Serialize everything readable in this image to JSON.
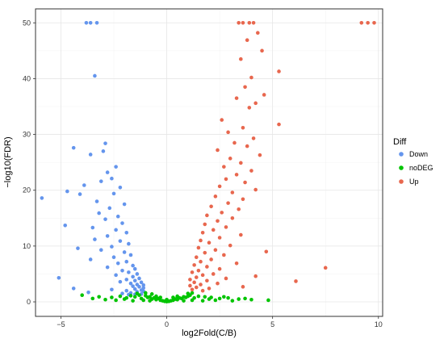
{
  "chart_data": {
    "type": "scatter",
    "xlabel": "log2Fold(C/B)",
    "ylabel": "−log10(FDR)",
    "xlim": [
      -6.2,
      10.2
    ],
    "ylim": [
      -2.6,
      52.5
    ],
    "xticks": [
      -5,
      0,
      5,
      10
    ],
    "yticks": [
      0,
      10,
      20,
      30,
      40,
      50
    ],
    "grid": true,
    "legend": {
      "title": "Diff",
      "position": "right"
    },
    "series": [
      {
        "name": "Down",
        "color": "#6495ED",
        "points": [
          [
            -3.8,
            50
          ],
          [
            -3.6,
            50
          ],
          [
            -3.3,
            50
          ],
          [
            -3.4,
            40.5
          ],
          [
            -4.4,
            27.6
          ],
          [
            -2.9,
            28.4
          ],
          [
            -3.0,
            27.0
          ],
          [
            -3.6,
            26.4
          ],
          [
            -2.4,
            24.2
          ],
          [
            -2.8,
            23.2
          ],
          [
            -2.6,
            22.1
          ],
          [
            -3.1,
            21.6
          ],
          [
            -3.9,
            20.9
          ],
          [
            -2.2,
            20.5
          ],
          [
            -2.5,
            19.4
          ],
          [
            -4.7,
            19.8
          ],
          [
            -4.1,
            19.3
          ],
          [
            -5.9,
            18.6
          ],
          [
            -3.3,
            18.0
          ],
          [
            -2.0,
            17.5
          ],
          [
            -2.7,
            16.8
          ],
          [
            -3.2,
            15.9
          ],
          [
            -2.3,
            15.3
          ],
          [
            -2.9,
            14.8
          ],
          [
            -2.1,
            14.1
          ],
          [
            -4.8,
            13.7
          ],
          [
            -3.5,
            13.3
          ],
          [
            -2.4,
            12.9
          ],
          [
            -1.9,
            12.4
          ],
          [
            -2.8,
            11.8
          ],
          [
            -3.4,
            11.2
          ],
          [
            -2.2,
            10.9
          ],
          [
            -1.8,
            10.4
          ],
          [
            -2.6,
            9.9
          ],
          [
            -4.2,
            9.6
          ],
          [
            -3.1,
            9.3
          ],
          [
            -2.0,
            8.9
          ],
          [
            -1.7,
            8.4
          ],
          [
            -2.5,
            8.0
          ],
          [
            -3.6,
            7.6
          ],
          [
            -1.9,
            7.2
          ],
          [
            -2.3,
            6.9
          ],
          [
            -1.6,
            6.5
          ],
          [
            -2.8,
            6.2
          ],
          [
            -1.5,
            5.9
          ],
          [
            -2.1,
            5.6
          ],
          [
            -1.8,
            5.3
          ],
          [
            -1.4,
            5.0
          ],
          [
            -2.4,
            4.8
          ],
          [
            -1.6,
            4.5
          ],
          [
            -5.1,
            4.3
          ],
          [
            -1.3,
            4.2
          ],
          [
            -1.9,
            4.0
          ],
          [
            -1.5,
            3.8
          ],
          [
            -2.2,
            3.6
          ],
          [
            -1.2,
            3.5
          ],
          [
            -1.7,
            3.3
          ],
          [
            -1.4,
            3.1
          ],
          [
            -1.1,
            3.0
          ],
          [
            -1.6,
            2.8
          ],
          [
            -1.3,
            2.7
          ],
          [
            -1.1,
            2.5
          ],
          [
            -4.4,
            2.4
          ],
          [
            -1.5,
            2.3
          ],
          [
            -1.2,
            2.1
          ],
          [
            -2.6,
            2.2
          ],
          [
            -1.9,
            2.0
          ],
          [
            -1.1,
            1.9
          ],
          [
            -1.4,
            1.8
          ],
          [
            -1.7,
            1.6
          ],
          [
            -3.7,
            1.7
          ],
          [
            -2.1,
            1.5
          ],
          [
            -1.2,
            1.4
          ],
          [
            -1.5,
            1.35
          ],
          [
            -1.8,
            1.3
          ]
        ]
      },
      {
        "name": "noDEG",
        "color": "#00C400",
        "points": [
          [
            -4.0,
            1.2
          ],
          [
            -3.2,
            0.9
          ],
          [
            -2.6,
            0.8
          ],
          [
            -2.2,
            1.0
          ],
          [
            -1.9,
            0.7
          ],
          [
            -1.7,
            1.1
          ],
          [
            -1.5,
            0.9
          ],
          [
            -1.3,
            1.2
          ],
          [
            -1.2,
            0.6
          ],
          [
            -1.0,
            1.1
          ],
          [
            -0.9,
            0.8
          ],
          [
            -0.8,
            0.9
          ],
          [
            -0.7,
            0.5
          ],
          [
            -0.6,
            0.7
          ],
          [
            -0.5,
            0.4
          ],
          [
            -0.4,
            0.6
          ],
          [
            -0.3,
            0.3
          ],
          [
            -0.2,
            0.2
          ],
          [
            -0.1,
            0.1
          ],
          [
            0.0,
            0.05
          ],
          [
            0.1,
            0.1
          ],
          [
            0.2,
            0.2
          ],
          [
            0.3,
            0.3
          ],
          [
            0.4,
            0.5
          ],
          [
            0.5,
            0.4
          ],
          [
            0.6,
            0.7
          ],
          [
            0.7,
            0.6
          ],
          [
            0.8,
            0.9
          ],
          [
            0.9,
            0.8
          ],
          [
            1.0,
            1.0
          ],
          [
            1.1,
            1.2
          ],
          [
            1.3,
            0.7
          ],
          [
            1.5,
            1.0
          ],
          [
            1.8,
            0.9
          ],
          [
            2.1,
            0.8
          ],
          [
            2.5,
            0.6
          ],
          [
            2.9,
            0.7
          ],
          [
            3.4,
            0.5
          ],
          [
            4.0,
            0.4
          ],
          [
            4.8,
            0.3
          ],
          [
            -2.9,
            0.4
          ],
          [
            -2.4,
            0.3
          ],
          [
            -1.6,
            0.2
          ],
          [
            -1.1,
            0.3
          ],
          [
            -0.8,
            0.2
          ],
          [
            0.8,
            0.2
          ],
          [
            1.2,
            0.3
          ],
          [
            1.7,
            0.2
          ],
          [
            2.3,
            0.3
          ],
          [
            3.1,
            0.2
          ],
          [
            -1.4,
            1.5
          ],
          [
            -1.0,
            1.6
          ],
          [
            -0.7,
            1.4
          ],
          [
            1.0,
            1.5
          ],
          [
            1.2,
            1.6
          ],
          [
            -0.5,
            1.0
          ],
          [
            0.5,
            1.0
          ],
          [
            -0.3,
            0.8
          ],
          [
            0.3,
            0.8
          ],
          [
            0.0,
            0.4
          ],
          [
            -3.5,
            0.6
          ],
          [
            -2.0,
            0.5
          ],
          [
            2.0,
            0.5
          ],
          [
            2.7,
            0.9
          ],
          [
            3.7,
            0.6
          ]
        ]
      },
      {
        "name": "Up",
        "color": "#E8674E",
        "points": [
          [
            3.4,
            50
          ],
          [
            3.6,
            50
          ],
          [
            3.9,
            50
          ],
          [
            4.1,
            50
          ],
          [
            9.2,
            50
          ],
          [
            9.5,
            50
          ],
          [
            9.8,
            50
          ],
          [
            4.3,
            48.2
          ],
          [
            3.8,
            46.9
          ],
          [
            4.5,
            45.0
          ],
          [
            3.5,
            43.5
          ],
          [
            5.3,
            41.3
          ],
          [
            4.0,
            40.2
          ],
          [
            3.7,
            38.5
          ],
          [
            4.6,
            37.1
          ],
          [
            3.3,
            36.5
          ],
          [
            4.2,
            35.6
          ],
          [
            3.9,
            34.8
          ],
          [
            2.6,
            32.6
          ],
          [
            5.3,
            31.8
          ],
          [
            3.6,
            31.2
          ],
          [
            2.9,
            30.4
          ],
          [
            4.1,
            29.3
          ],
          [
            3.2,
            28.5
          ],
          [
            3.8,
            27.9
          ],
          [
            2.4,
            27.2
          ],
          [
            4.4,
            26.3
          ],
          [
            3.0,
            25.7
          ],
          [
            3.5,
            24.9
          ],
          [
            2.7,
            24.2
          ],
          [
            4.0,
            23.5
          ],
          [
            3.3,
            22.8
          ],
          [
            2.8,
            22.0
          ],
          [
            3.7,
            21.4
          ],
          [
            2.5,
            20.7
          ],
          [
            4.2,
            20.1
          ],
          [
            3.1,
            19.6
          ],
          [
            2.3,
            18.9
          ],
          [
            3.6,
            18.4
          ],
          [
            2.9,
            17.7
          ],
          [
            2.1,
            17.1
          ],
          [
            3.4,
            16.6
          ],
          [
            2.6,
            16.0
          ],
          [
            1.9,
            15.5
          ],
          [
            3.1,
            15.0
          ],
          [
            2.4,
            14.5
          ],
          [
            1.8,
            13.9
          ],
          [
            2.8,
            13.4
          ],
          [
            2.2,
            12.9
          ],
          [
            1.7,
            12.4
          ],
          [
            3.5,
            12.0
          ],
          [
            2.5,
            11.5
          ],
          [
            1.6,
            11.0
          ],
          [
            2.0,
            10.6
          ],
          [
            3.0,
            10.1
          ],
          [
            1.5,
            9.7
          ],
          [
            2.3,
            9.3
          ],
          [
            4.7,
            9.0
          ],
          [
            1.8,
            8.8
          ],
          [
            2.7,
            8.4
          ],
          [
            1.4,
            8.0
          ],
          [
            2.1,
            7.6
          ],
          [
            1.6,
            7.2
          ],
          [
            3.3,
            6.9
          ],
          [
            1.3,
            6.6
          ],
          [
            7.5,
            6.1
          ],
          [
            1.9,
            6.3
          ],
          [
            2.5,
            5.9
          ],
          [
            1.5,
            5.6
          ],
          [
            1.2,
            5.3
          ],
          [
            2.2,
            5.0
          ],
          [
            1.7,
            4.8
          ],
          [
            4.2,
            4.6
          ],
          [
            1.4,
            4.4
          ],
          [
            2.8,
            4.2
          ],
          [
            1.1,
            4.0
          ],
          [
            6.1,
            3.7
          ],
          [
            1.9,
            3.8
          ],
          [
            1.3,
            3.5
          ],
          [
            2.4,
            3.3
          ],
          [
            1.6,
            3.1
          ],
          [
            1.1,
            2.9
          ],
          [
            3.6,
            2.7
          ],
          [
            1.4,
            2.6
          ],
          [
            2.0,
            2.4
          ],
          [
            1.2,
            2.2
          ],
          [
            1.7,
            2.0
          ]
        ]
      }
    ]
  }
}
